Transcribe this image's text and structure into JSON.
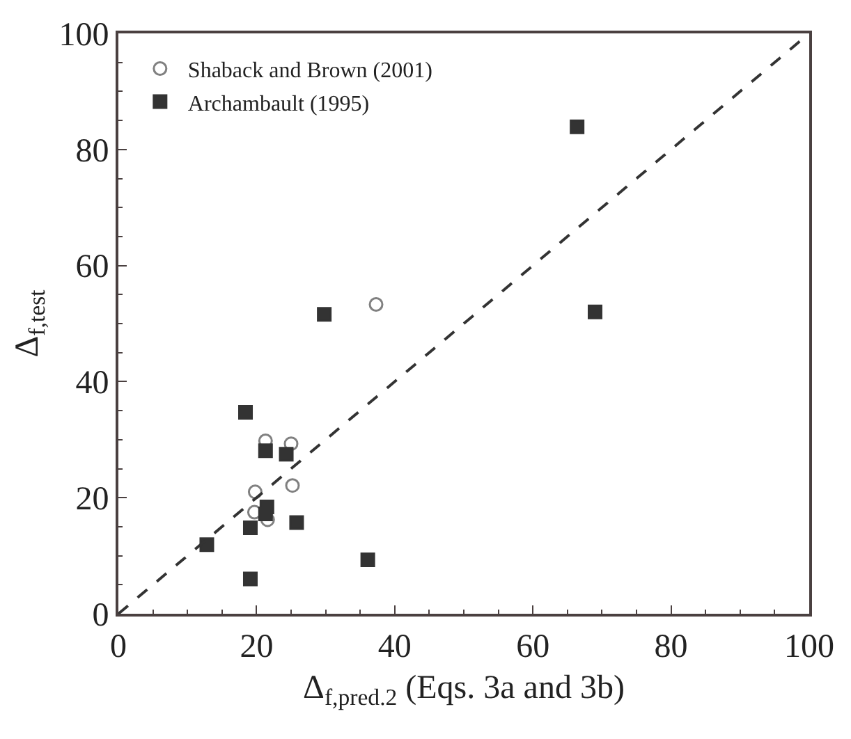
{
  "chart_data": {
    "type": "scatter",
    "xlabel": "Δ$_{f,pred.2}$ (Eqs. 3a and 3b)",
    "ylabel": "Δ$_{f,test}$",
    "xlim": [
      0,
      100
    ],
    "xticks": [
      0,
      20,
      40,
      60,
      80,
      100
    ],
    "ylim": [
      0,
      100
    ],
    "yticks": [
      0,
      20,
      40,
      60,
      80,
      100
    ],
    "grid": false,
    "legend": "top left",
    "series": [
      {
        "name": "Shaback and Brown (2001)",
        "color": "#808080",
        "marker": "circle",
        "x": [
          37.3,
          21.3,
          25.0,
          25.2,
          19.8,
          19.7,
          21.6
        ],
        "values": [
          53.3,
          29.8,
          29.3,
          22.1,
          21.0,
          17.5,
          16.2
        ]
      },
      {
        "name": "Archambault (1995)",
        "color": "#333333",
        "marker": "square",
        "x": [
          18.4,
          29.8,
          21.3,
          24.3,
          21.5,
          21.3,
          19.1,
          25.8,
          12.8,
          19.1,
          36.1,
          66.4,
          69.0
        ],
        "values": [
          34.7,
          51.6,
          28.1,
          27.5,
          18.4,
          17.2,
          14.8,
          15.7,
          11.9,
          6.0,
          9.3,
          83.9,
          52.0
        ]
      },
      {
        "type": "line",
        "color": "#333333",
        "line_style": "dashed",
        "x": [
          0,
          100
        ],
        "values": [
          0,
          100
        ]
      }
    ]
  }
}
